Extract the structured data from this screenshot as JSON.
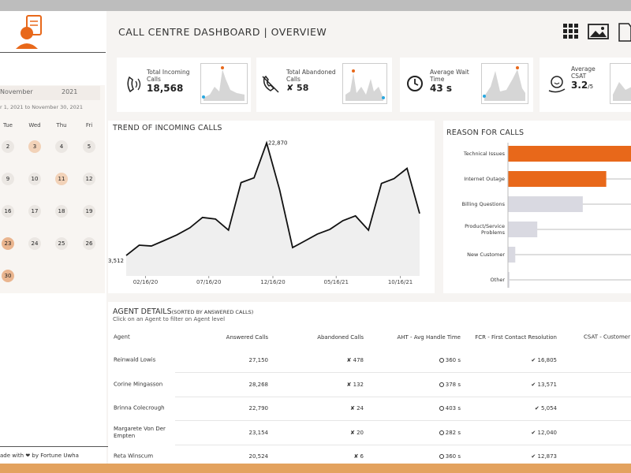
{
  "header": {
    "title": "CALL CENTRE DASHBOARD | OVERVIEW"
  },
  "sidebar": {
    "month": "November",
    "year": "2021",
    "range": "r 1, 2021 to November 30, 2021",
    "weekdays": [
      "Tue",
      "Wed",
      "Thu",
      "Fri"
    ],
    "weeks": [
      [
        2,
        3,
        4,
        5
      ],
      [
        9,
        10,
        11,
        12
      ],
      [
        16,
        17,
        18,
        19
      ],
      [
        23,
        24,
        25,
        26
      ],
      [
        30
      ]
    ],
    "highlighted": [
      3,
      11
    ],
    "selected": [
      23,
      30
    ],
    "footer": "ade with ❤ by Fortune Uwha"
  },
  "kpis": [
    {
      "label": "Total Incoming Calls",
      "value": "18,568"
    },
    {
      "label": "Total Abandoned Calls",
      "value": "✘ 58"
    },
    {
      "label": "Average Wait Time",
      "value": "43 s"
    },
    {
      "label": "Average CSAT",
      "value": "3.2",
      "suffix": "/5"
    }
  ],
  "chart_data": [
    {
      "type": "line",
      "title": "TREND OF INCOMING CALLS",
      "color": "#111111",
      "area_color": "#efefef",
      "x": [
        "2020-01-01",
        "2020-02-01",
        "2020-03-01",
        "2020-04-01",
        "2020-05-01",
        "2020-06-01",
        "2020-07-01",
        "2020-08-01",
        "2020-09-01",
        "2020-10-01",
        "2020-11-01",
        "2020-12-01",
        "2021-01-01",
        "2021-02-01",
        "2021-03-01",
        "2021-04-01",
        "2021-05-01",
        "2021-06-01",
        "2021-07-01",
        "2021-08-01",
        "2021-09-01",
        "2021-10-01",
        "2021-11-01",
        "2021-12-01"
      ],
      "values": [
        3512,
        5284,
        5148,
        6102,
        7056,
        8283,
        10054,
        9782,
        7874,
        16052,
        16870,
        22870,
        14825,
        4875,
        5965,
        7192,
        8010,
        9509,
        10327,
        7874,
        15915,
        16733,
        18505,
        10736
      ],
      "value_labels": [
        "3,512",
        null,
        null,
        null,
        null,
        null,
        null,
        null,
        null,
        null,
        null,
        "22,870",
        null,
        null,
        null,
        null,
        null,
        null,
        null,
        null,
        null,
        null,
        null,
        null
      ],
      "xlim": [
        "2020-01-01",
        "2021-12-01"
      ],
      "xticks": [
        {
          "value": "2020-02-16",
          "label": "02/16/20"
        },
        {
          "value": "2020-07-16",
          "label": "07/16/20"
        },
        {
          "value": "2020-12-16",
          "label": "12/16/20"
        },
        {
          "value": "2021-05-16",
          "label": "05/16/21"
        },
        {
          "value": "2021-10-16",
          "label": "10/16/21"
        }
      ],
      "ylim": [
        0,
        24000
      ]
    },
    {
      "type": "hbar",
      "title": "REASON FOR CALLS",
      "categories": [
        "Technical Issues",
        "Internet Outage",
        "Billing Questions",
        "Product/Service Problems",
        "New Customer",
        "Other"
      ],
      "values": [
        180,
        134,
        102,
        40,
        10,
        2
      ],
      "colors": [
        "#e8681a",
        "#e8681a",
        "#d9d9e1",
        "#d9d9e1",
        "#d9d9e1",
        "#d9d9e1"
      ],
      "xlim": [
        0,
        200
      ]
    }
  ],
  "agents": {
    "title": "AGENT DETAILS",
    "title_note": "(SORTED BY ANSWERED CALLS)",
    "subtitle": "Click on an Agent to filter on Agent level",
    "columns": [
      "Agent",
      "Answered Calls",
      "Abandoned Calls",
      "AHT - Avg Handle Time",
      "FCR - First Contact Resolution",
      "CSAT - Customer Sa"
    ],
    "rows": [
      [
        "Reinwald Lowis",
        "27,150",
        "✘ 478",
        "360 s",
        "✔ 16,805"
      ],
      [
        "Corine Mingasson",
        "28,268",
        "✘ 132",
        "378 s",
        "✔ 13,571"
      ],
      [
        "Brinna Colecrough",
        "22,790",
        "✘ 24",
        "403 s",
        "✔ 5,054"
      ],
      [
        "Margarete Von Der Empten",
        "23,154",
        "✘ 20",
        "282 s",
        "✔ 12,040"
      ],
      [
        "Reta Winscum",
        "20,524",
        "✘ 6",
        "360 s",
        "✔ 12,873"
      ]
    ]
  }
}
